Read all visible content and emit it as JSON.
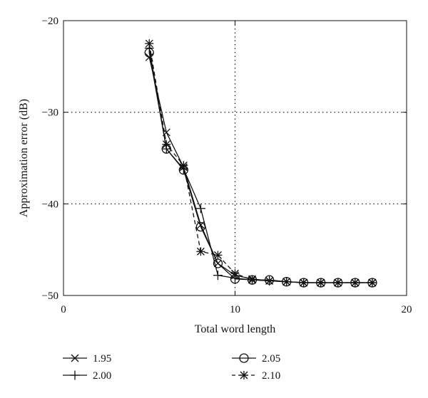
{
  "chart_data": {
    "type": "line",
    "title": "",
    "xlabel": "Total word length",
    "ylabel": "Approximation error (dB)",
    "xlim": [
      0,
      20
    ],
    "ylim": [
      -50,
      -20
    ],
    "x_ticks": [
      0,
      10,
      20
    ],
    "y_ticks": [
      -20,
      -30,
      -40,
      -50
    ],
    "x_tick_labels": [
      "0",
      "10",
      "20"
    ],
    "y_tick_labels": [
      "−20",
      "−30",
      "−40",
      "−50"
    ],
    "grid": "dotted at x=10 and y=-30, -40",
    "legend_position": "below plot, two columns",
    "colors": {
      "line": "#111111",
      "background": "#ffffff"
    },
    "series": [
      {
        "name": "1.95",
        "marker": "x",
        "dash": "solid",
        "x": [
          5,
          6,
          7,
          8,
          9,
          10,
          11,
          12,
          13,
          14,
          15,
          16,
          17,
          18
        ],
        "y": [
          -24.0,
          -32.2,
          -36.0,
          -42.3,
          -46.5,
          -47.8,
          -48.2,
          -48.4,
          -48.5,
          -48.6,
          -48.6,
          -48.6,
          -48.6,
          -48.6
        ]
      },
      {
        "name": "2.00",
        "marker": "plus",
        "dash": "solid",
        "x": [
          5,
          6,
          7,
          8,
          9,
          10,
          11,
          12,
          13,
          14,
          15,
          16,
          17,
          18
        ],
        "y": [
          -23.0,
          -34.0,
          -36.2,
          -40.5,
          -47.8,
          -48.1,
          -48.3,
          -48.4,
          -48.5,
          -48.6,
          -48.6,
          -48.6,
          -48.6,
          -48.6
        ]
      },
      {
        "name": "2.05",
        "marker": "circle",
        "dash": "solid",
        "x": [
          5,
          6,
          7,
          8,
          9,
          10,
          11,
          12,
          13,
          14,
          15,
          16,
          17,
          18
        ],
        "y": [
          -23.5,
          -34.0,
          -36.3,
          -42.5,
          -46.5,
          -48.2,
          -48.3,
          -48.3,
          -48.5,
          -48.6,
          -48.6,
          -48.6,
          -48.6,
          -48.6
        ]
      },
      {
        "name": "2.10",
        "marker": "asterisk",
        "dash": "dashed",
        "x": [
          5,
          6,
          7,
          8,
          9,
          10,
          11,
          12,
          13,
          14,
          15,
          16,
          17,
          18
        ],
        "y": [
          -22.5,
          -33.5,
          -35.8,
          -45.2,
          -45.6,
          -47.6,
          -48.3,
          -48.4,
          -48.5,
          -48.6,
          -48.6,
          -48.6,
          -48.6,
          -48.6
        ]
      }
    ]
  }
}
